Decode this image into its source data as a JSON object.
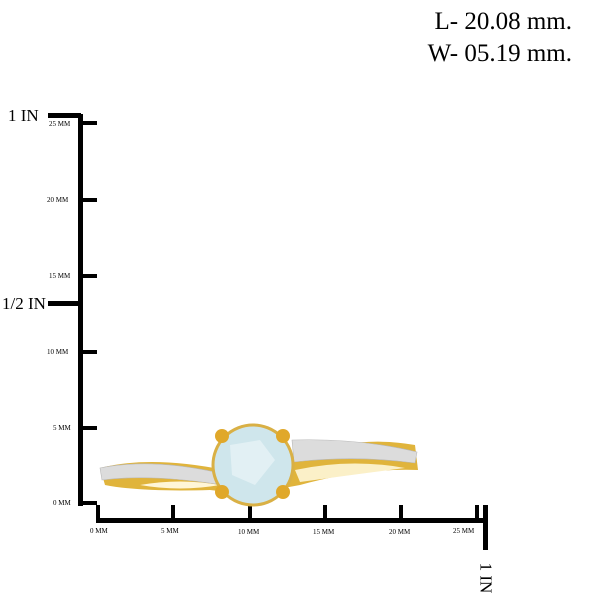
{
  "dimensions": {
    "length": "L- 20.08 mm.",
    "width": "W- 05.19 mm."
  },
  "vertical_ruler": {
    "inch_labels": [
      "1 IN",
      "1/2 IN"
    ],
    "mm_labels": [
      "25 MM",
      "20 MM",
      "15 MM",
      "10 MM",
      "5 MM",
      "0 MM"
    ]
  },
  "horizontal_ruler": {
    "inch_label": "1 IN",
    "mm_labels": [
      "0 MM",
      "5 MM",
      "10 MM",
      "15 MM",
      "20 MM",
      "25 MM"
    ]
  },
  "colors": {
    "gold": "#e0b43c",
    "gem": "#cfe6ec",
    "ruler": "#000000"
  }
}
